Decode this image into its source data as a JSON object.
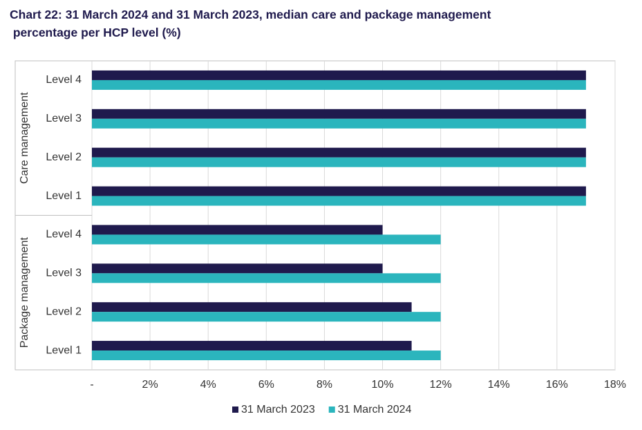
{
  "chart_data": {
    "type": "hbar",
    "title": "Chart 22: 31 March 2024 and 31 March 2023, median care and package management percentage per HCP level (%)",
    "groups": [
      {
        "label": "Care management",
        "categories": [
          "Level 4",
          "Level 3",
          "Level 2",
          "Level 1"
        ]
      },
      {
        "label": "Package management",
        "categories": [
          "Level 4",
          "Level 3",
          "Level 2",
          "Level 1"
        ]
      }
    ],
    "series": [
      {
        "name": "31 March 2023",
        "color": "#1f1a4d",
        "values": [
          17,
          17,
          17,
          17,
          10,
          10,
          11,
          11
        ]
      },
      {
        "name": "31 March 2024",
        "color": "#2bb5bd",
        "values": [
          17,
          17,
          17,
          17,
          12,
          12,
          12,
          12
        ]
      }
    ],
    "xlim": [
      0,
      18
    ],
    "xticks": [
      {
        "value": 0,
        "label": "-"
      },
      {
        "value": 2,
        "label": "2%"
      },
      {
        "value": 4,
        "label": "4%"
      },
      {
        "value": 6,
        "label": "6%"
      },
      {
        "value": 8,
        "label": "8%"
      },
      {
        "value": 10,
        "label": "10%"
      },
      {
        "value": 12,
        "label": "12%"
      },
      {
        "value": 14,
        "label": "14%"
      },
      {
        "value": 16,
        "label": "16%"
      },
      {
        "value": 18,
        "label": "18%"
      }
    ],
    "grid": true,
    "legend": "bottom"
  }
}
